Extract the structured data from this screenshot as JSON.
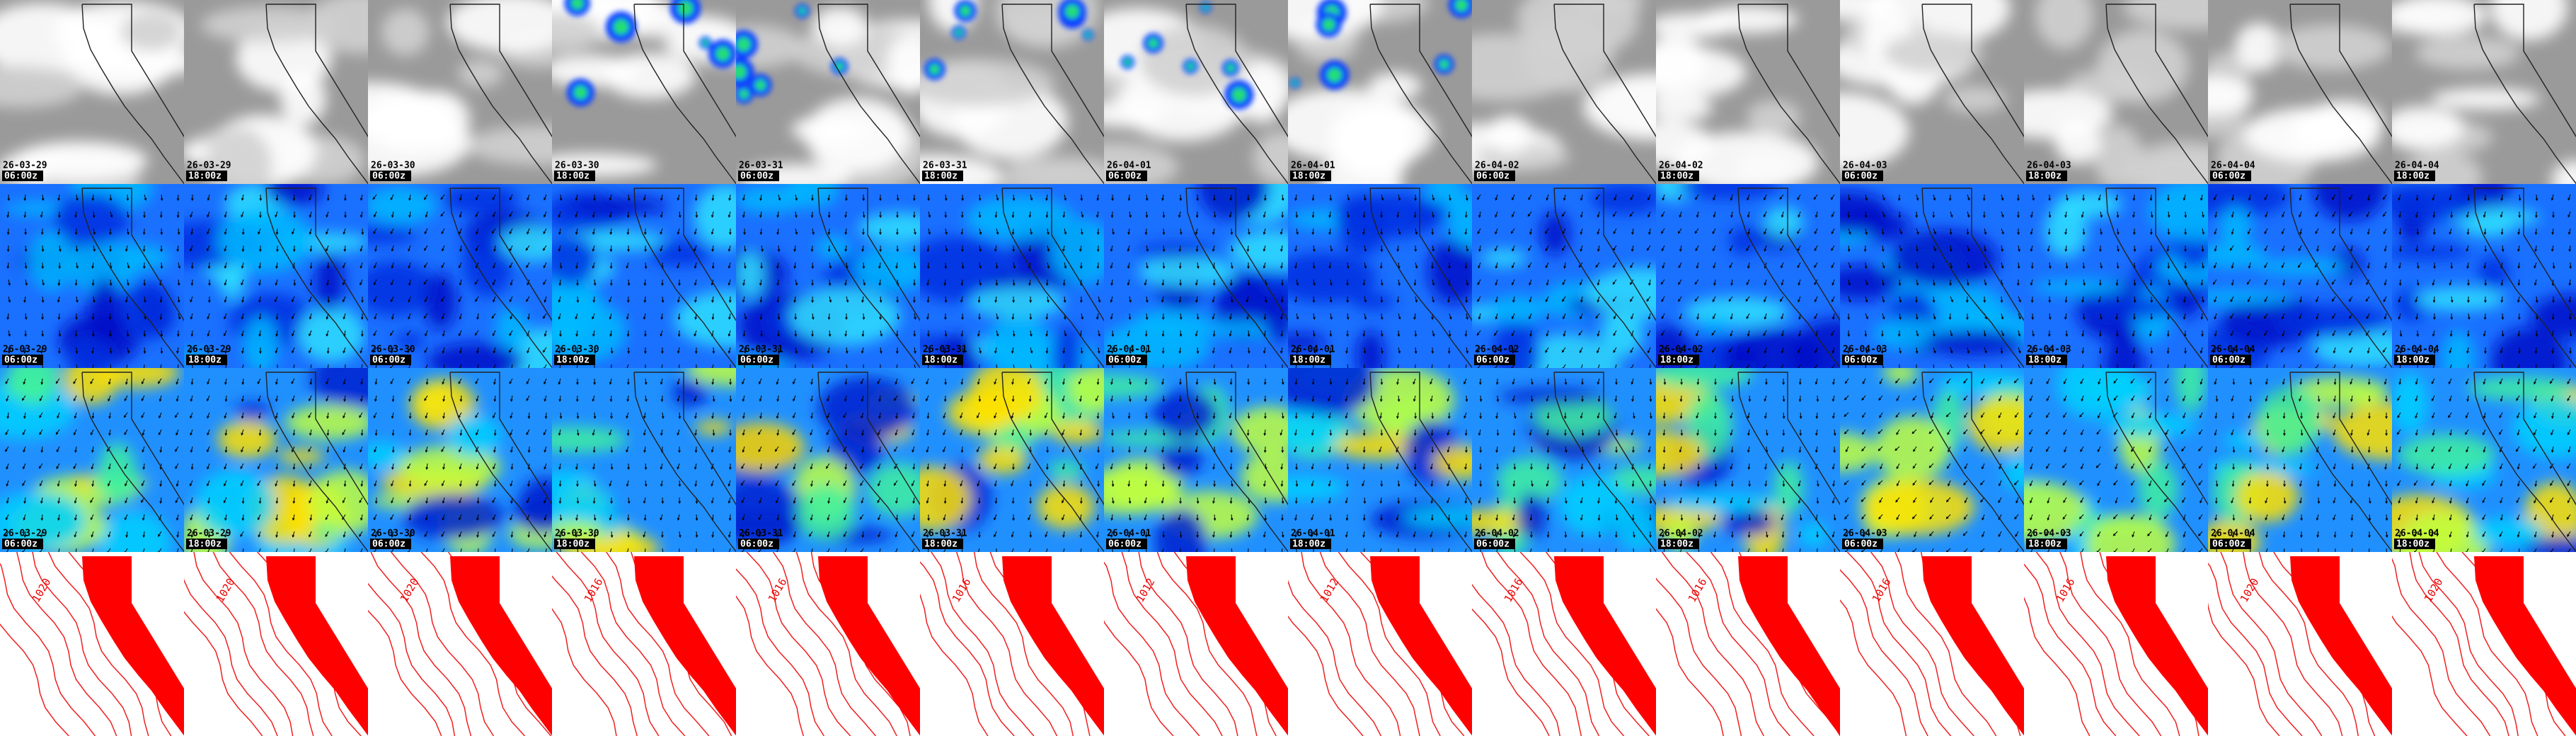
{
  "frames": [
    {
      "date": "26-03-29",
      "time": "06:00z"
    },
    {
      "date": "26-03-29",
      "time": "18:00z"
    },
    {
      "date": "26-03-30",
      "time": "06:00z"
    },
    {
      "date": "26-03-30",
      "time": "18:00z"
    },
    {
      "date": "26-03-31",
      "time": "06:00z"
    },
    {
      "date": "26-03-31",
      "time": "18:00z"
    },
    {
      "date": "26-04-01",
      "time": "06:00z"
    },
    {
      "date": "26-04-01",
      "time": "18:00z"
    },
    {
      "date": "26-04-02",
      "time": "06:00z"
    },
    {
      "date": "26-04-02",
      "time": "18:00z"
    },
    {
      "date": "26-04-03",
      "time": "06:00z"
    },
    {
      "date": "26-04-03",
      "time": "18:00z"
    },
    {
      "date": "26-04-04",
      "time": "06:00z"
    },
    {
      "date": "26-04-04",
      "time": "18:00z"
    }
  ],
  "contour_labels": [
    "1020",
    "1020",
    "1020",
    "1016",
    "1016",
    "1016",
    "1012",
    "1012",
    "1016",
    "1016",
    "1016",
    "1016",
    "1020",
    "1020"
  ]
}
